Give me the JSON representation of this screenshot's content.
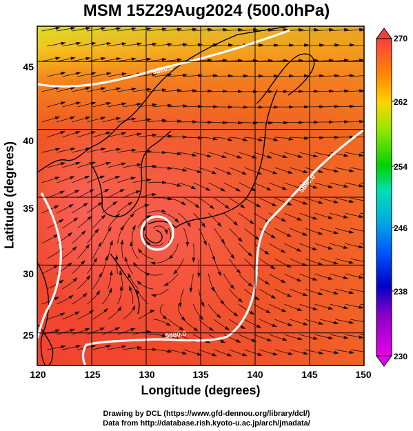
{
  "title": "MSM 15Z29Aug2024 (500.0hPa)",
  "axes": {
    "xlabel": "Longitude (degrees)",
    "ylabel": "Latitude  (degrees)",
    "xticks": [
      "120",
      "125",
      "130",
      "135",
      "140",
      "145",
      "150"
    ],
    "yticks": [
      "25",
      "30",
      "35",
      "40",
      "45"
    ],
    "xlim": [
      120,
      150
    ],
    "ylim": [
      22.6,
      47.6
    ]
  },
  "colorbar": {
    "ticks": [
      "270",
      "262",
      "254",
      "246",
      "238",
      "230"
    ],
    "range": [
      230,
      270
    ],
    "colors": [
      "#e800e8",
      "#0000c8",
      "#0096ff",
      "#00e0c0",
      "#00d200",
      "#c8e600",
      "#ffd200",
      "#ff8c00",
      "#ff5020",
      "#ff3c3c"
    ]
  },
  "contours": {
    "label": "5880.0",
    "color": "#ffffff"
  },
  "footer": {
    "line1": "Drawing by DCL (https://www.gfd-dennou.org/library/dcl/)",
    "line2": "Data from http://database.rish.kyoto-u.ac.jp/arch/jmadata/"
  },
  "chart_data": {
    "type": "heatmap",
    "title": "MSM 15Z29Aug2024 (500.0hPa)",
    "xlabel": "Longitude (degrees)",
    "ylabel": "Latitude  (degrees)",
    "xlim": [
      120,
      150
    ],
    "ylim": [
      22.6,
      47.6
    ],
    "colorbar_range": [
      230,
      270
    ],
    "contour_level_label": "5880.0",
    "overlays": [
      "streamlines",
      "coastlines",
      "grid"
    ],
    "grid": true
  }
}
